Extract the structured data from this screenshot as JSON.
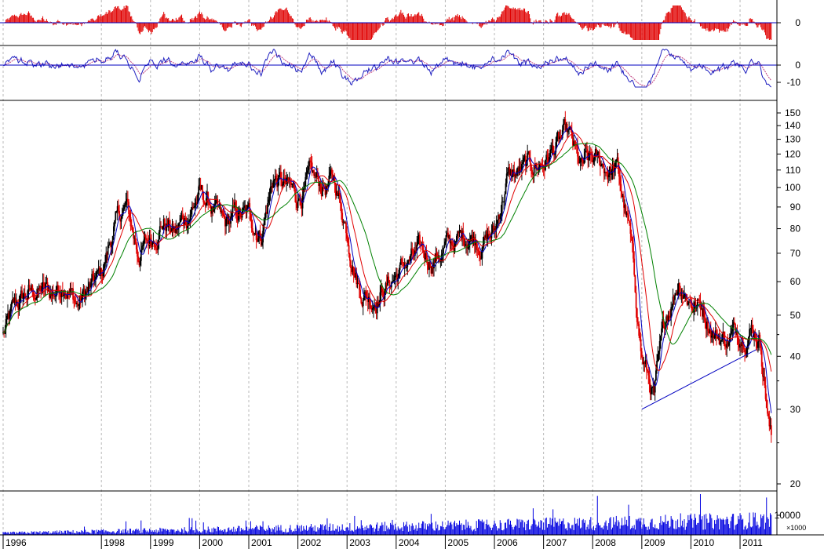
{
  "chart_data": {
    "type": "line",
    "subtype": "candlestick stock chart with moving averages, oscillators and volume",
    "title": "",
    "xlabel": "",
    "ylabel": "",
    "x_range": [
      "1996-01",
      "2011-09"
    ],
    "x_ticks": [
      "1996",
      "1998",
      "1999",
      "2000",
      "2001",
      "2002",
      "2003",
      "2004",
      "2005",
      "2006",
      "2007",
      "2008",
      "2009",
      "2010",
      "2011"
    ],
    "grid": "vertical dashed at each year",
    "panels": {
      "histogram_oscillator": {
        "ticks": [
          "0"
        ],
        "colors": {
          "bars": "#e00000",
          "zero_line": "#0000c0"
        }
      },
      "line_oscillator": {
        "ticks": [
          "0",
          "-10"
        ],
        "colors": {
          "main": "#2020c0",
          "signal": "#c04080"
        }
      },
      "price": {
        "scale": "log",
        "ylim": [
          18,
          160
        ],
        "ticks": [
          "150",
          "140",
          "130",
          "120",
          "110",
          "100",
          "90",
          "80",
          "70",
          "60",
          "50",
          "40",
          "30",
          "20"
        ],
        "up_color": "#000000",
        "down_color": "#e00000",
        "ma_colors": {
          "fast": "#0000c0",
          "medium": "#e00000",
          "slow": "#008000"
        },
        "trendline": {
          "from": {
            "x": "2009-01",
            "y": 30
          },
          "to": {
            "x": "2011-05",
            "y": 41.5
          },
          "color": "#0000c0"
        }
      },
      "volume": {
        "ticks": [
          "10000"
        ],
        "unit": "×1000",
        "color": "#0000e0"
      }
    },
    "close_series": {
      "x": [
        "1996-01",
        "1996-04",
        "1996-07",
        "1996-10",
        "1997-01",
        "1997-04",
        "1997-07",
        "1997-10",
        "1998-01",
        "1998-04",
        "1998-07",
        "1998-10",
        "1999-01",
        "1999-04",
        "1999-07",
        "1999-10",
        "2000-01",
        "2000-04",
        "2000-07",
        "2000-10",
        "2001-01",
        "2001-04",
        "2001-07",
        "2001-10",
        "2002-01",
        "2002-04",
        "2002-07",
        "2002-10",
        "2003-01",
        "2003-04",
        "2003-07",
        "2003-10",
        "2004-01",
        "2004-04",
        "2004-07",
        "2004-10",
        "2005-01",
        "2005-04",
        "2005-07",
        "2005-10",
        "2006-01",
        "2006-04",
        "2006-07",
        "2006-10",
        "2007-01",
        "2007-04",
        "2007-07",
        "2007-10",
        "2008-01",
        "2008-04",
        "2008-07",
        "2008-10",
        "2009-01",
        "2009-04",
        "2009-07",
        "2009-10",
        "2010-01",
        "2010-04",
        "2010-07",
        "2010-10",
        "2011-01",
        "2011-04",
        "2011-06",
        "2011-08",
        "2011-09"
      ],
      "values": [
        45,
        52,
        56,
        57,
        56,
        61,
        53,
        57,
        62,
        80,
        90,
        70,
        75,
        84,
        78,
        86,
        96,
        90,
        80,
        86,
        85,
        78,
        106,
        100,
        95,
        104,
        100,
        103,
        80,
        58,
        55,
        58,
        62,
        67,
        69,
        68,
        72,
        75,
        78,
        75,
        78,
        105,
        108,
        112,
        115,
        125,
        132,
        110,
        115,
        112,
        110,
        78,
        40,
        32,
        50,
        61,
        54,
        52,
        45,
        44,
        46,
        47,
        44,
        28,
        24
      ],
      "note": ""
    }
  }
}
